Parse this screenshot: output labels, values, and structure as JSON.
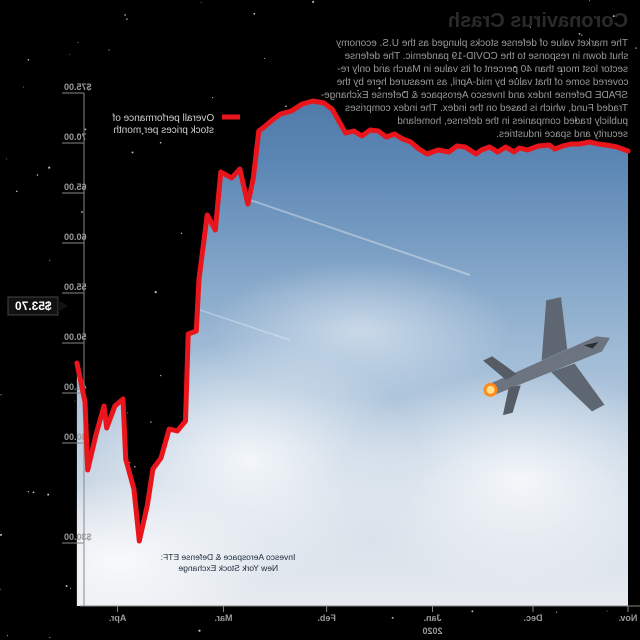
{
  "header": {
    "title": "Coronavirus Crash",
    "body_lines": [
      "The market value of defense stocks plunged as the U.S. economy",
      "shut down in response to the COVID-19 pandemic. The defense",
      "sector lost more than 40 percent of its value in March and only re-",
      "covered some of that value by mid-April, as measured here by the",
      "SPADE Defense Index and Invesco Aerospace & Defense Exchange-",
      "Traded Fund, which is based on the index. The index comprises",
      "publicly traded companies in the defense, homeland",
      "security and space industries."
    ]
  },
  "legend": {
    "line1": "Overall performance of",
    "line2": "stock prices per month"
  },
  "source": {
    "line1": "Invesco Aerospace & Defense ETF:",
    "line2": "New York Stock Exchange"
  },
  "callout": {
    "label": "$53.70",
    "value": 53.7
  },
  "colors": {
    "line": "#e8161c",
    "axis": "#888888",
    "callout_bg": "#111111"
  },
  "chart_data": {
    "type": "line",
    "title": "",
    "xlabel": "",
    "ylabel": "",
    "ylim": [
      30,
      75
    ],
    "y_ticks": [
      {
        "value": 30,
        "label": "$30.00"
      },
      {
        "value": 40,
        "label": "40.00"
      },
      {
        "value": 45,
        "label": "45.00"
      },
      {
        "value": 50,
        "label": "50.00"
      },
      {
        "value": 55,
        "label": "55.00"
      },
      {
        "value": 60,
        "label": "60.00"
      },
      {
        "value": 65,
        "label": "65.00"
      },
      {
        "value": 70,
        "label": "70.00"
      },
      {
        "value": 75,
        "label": "$75.00"
      }
    ],
    "x_ticks": [
      {
        "pos": 0.0,
        "label": "Nov."
      },
      {
        "pos": 0.175,
        "label": "Dec."
      },
      {
        "pos": 0.36,
        "label": "Jan."
      },
      {
        "pos": 0.555,
        "label": "Feb."
      },
      {
        "pos": 0.745,
        "label": "Mar."
      },
      {
        "pos": 0.94,
        "label": "Apr."
      }
    ],
    "year_label": "2020",
    "series": [
      {
        "values": [
          [
            0.0,
            69.2
          ],
          [
            0.02,
            69.6
          ],
          [
            0.04,
            69.8
          ],
          [
            0.055,
            69.9
          ],
          [
            0.07,
            70.1
          ],
          [
            0.09,
            69.9
          ],
          [
            0.105,
            69.9
          ],
          [
            0.12,
            69.7
          ],
          [
            0.135,
            69.4
          ],
          [
            0.145,
            69.8
          ],
          [
            0.165,
            69.7
          ],
          [
            0.185,
            69.3
          ],
          [
            0.2,
            69.5
          ],
          [
            0.21,
            69.1
          ],
          [
            0.225,
            69.6
          ],
          [
            0.24,
            69.1
          ],
          [
            0.255,
            69.6
          ],
          [
            0.27,
            69.3
          ],
          [
            0.28,
            68.9
          ],
          [
            0.3,
            69.6
          ],
          [
            0.315,
            69.7
          ],
          [
            0.33,
            69.1
          ],
          [
            0.35,
            69.3
          ],
          [
            0.37,
            68.9
          ],
          [
            0.385,
            69.4
          ],
          [
            0.4,
            70.1
          ],
          [
            0.415,
            70.4
          ],
          [
            0.43,
            70.9
          ],
          [
            0.445,
            70.6
          ],
          [
            0.46,
            71.2
          ],
          [
            0.475,
            71.3
          ],
          [
            0.49,
            70.7
          ],
          [
            0.505,
            71.2
          ],
          [
            0.52,
            71.0
          ],
          [
            0.545,
            73.4
          ],
          [
            0.56,
            74.0
          ],
          [
            0.58,
            74.2
          ],
          [
            0.6,
            73.9
          ],
          [
            0.62,
            73.2
          ],
          [
            0.64,
            72.9
          ],
          [
            0.655,
            72.3
          ],
          [
            0.67,
            71.6
          ],
          [
            0.68,
            71.2
          ],
          [
            0.69,
            66.5
          ],
          [
            0.7,
            63.9
          ],
          [
            0.715,
            67.4
          ],
          [
            0.73,
            66.5
          ],
          [
            0.75,
            67.1
          ],
          [
            0.76,
            61.3
          ],
          [
            0.775,
            62.8
          ],
          [
            0.79,
            56.4
          ],
          [
            0.795,
            51.2
          ],
          [
            0.81,
            50.9
          ],
          [
            0.815,
            42.2
          ],
          [
            0.83,
            41.2
          ],
          [
            0.845,
            41.4
          ],
          [
            0.86,
            38.5
          ],
          [
            0.875,
            37.4
          ],
          [
            0.885,
            33.8
          ],
          [
            0.9,
            30.2
          ],
          [
            0.91,
            35.4
          ],
          [
            0.925,
            38.4
          ],
          [
            0.93,
            44.4
          ],
          [
            0.945,
            43.7
          ],
          [
            0.96,
            41.5
          ],
          [
            0.965,
            43.7
          ],
          [
            0.98,
            40.8
          ],
          [
            0.995,
            37.3
          ],
          [
            1.0,
            44.1
          ],
          [
            1.015,
            48.0
          ]
        ]
      }
    ]
  }
}
